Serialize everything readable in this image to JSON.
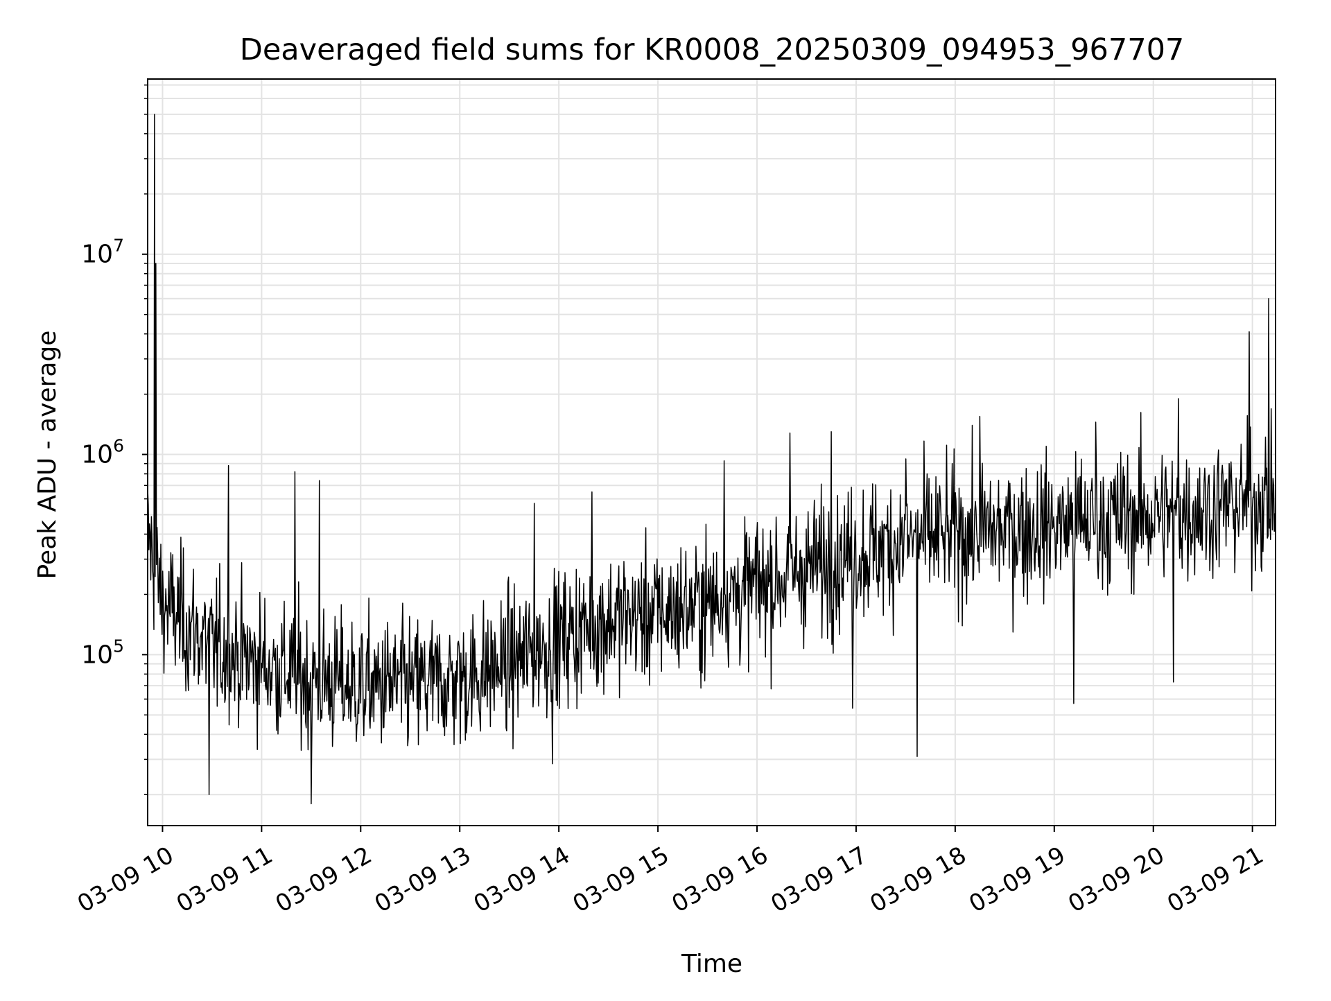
{
  "chart_data": {
    "type": "line",
    "title": "Deaveraged field sums for KR0008_20250309_094953_967707",
    "xlabel": "Time",
    "ylabel": "Peak ADU - average",
    "xlim": [
      "2025-03-09 09:51",
      "2025-03-09 21:14"
    ],
    "ylim": [
      14000,
      75000000
    ],
    "yscale": "log",
    "grid": true,
    "line_color": "#000000",
    "x_tick_labels": [
      "03-09 10",
      "03-09 11",
      "03-09 12",
      "03-09 13",
      "03-09 14",
      "03-09 15",
      "03-09 16",
      "03-09 17",
      "03-09 18",
      "03-09 19",
      "03-09 20",
      "03-09 21"
    ],
    "y_tick_labels": [
      {
        "value": 100000,
        "base": "10",
        "exp": "5"
      },
      {
        "value": 1000000,
        "base": "10",
        "exp": "6"
      },
      {
        "value": 10000000,
        "base": "10",
        "exp": "7"
      }
    ],
    "series": [
      {
        "x": [
          "2025-03-09 09:51",
          "2025-03-09 10:00",
          "2025-03-09 10:15",
          "2025-03-09 10:30",
          "2025-03-09 11:00",
          "2025-03-09 11:30",
          "2025-03-09 12:00",
          "2025-03-09 12:30",
          "2025-03-09 13:00",
          "2025-03-09 13:30",
          "2025-03-09 14:00",
          "2025-03-09 14:30",
          "2025-03-09 15:00",
          "2025-03-09 15:30",
          "2025-03-09 16:00",
          "2025-03-09 16:30",
          "2025-03-09 17:00",
          "2025-03-09 17:30",
          "2025-03-09 18:00",
          "2025-03-09 18:30",
          "2025-03-09 19:00",
          "2025-03-09 19:30",
          "2025-03-09 20:00",
          "2025-03-09 20:30",
          "2025-03-09 21:00",
          "2025-03-09 21:14"
        ],
        "y": [
          400000,
          180000,
          140000,
          110000,
          90000,
          75000,
          70000,
          70000,
          75000,
          90000,
          120000,
          150000,
          160000,
          180000,
          220000,
          270000,
          320000,
          370000,
          400000,
          420000,
          440000,
          470000,
          500000,
          530000,
          580000,
          600000
        ]
      }
    ],
    "spikes": [
      {
        "x": "2025-03-09 09:55",
        "y": 50000000
      },
      {
        "x": "2025-03-09 09:56",
        "y": 9000000
      },
      {
        "x": "2025-03-09 20:58",
        "y": 4100000
      },
      {
        "x": "2025-03-09 21:10",
        "y": 6000000
      },
      {
        "x": "2025-03-09 18:15",
        "y": 1550000
      },
      {
        "x": "2025-03-09 20:15",
        "y": 1900000
      },
      {
        "x": "2025-03-09 16:45",
        "y": 1300000
      },
      {
        "x": "2025-03-09 15:40",
        "y": 930000
      },
      {
        "x": "2025-03-09 10:40",
        "y": 880000
      },
      {
        "x": "2025-03-09 11:20",
        "y": 820000
      },
      {
        "x": "2025-03-09 11:35",
        "y": 740000
      },
      {
        "x": "2025-03-09 14:20",
        "y": 650000
      },
      {
        "x": "2025-03-09 16:20",
        "y": 1280000
      },
      {
        "x": "2025-03-09 17:30",
        "y": 950000
      },
      {
        "x": "2025-03-09 19:25",
        "y": 1450000
      },
      {
        "x": "2025-03-09 13:45",
        "y": 570000
      }
    ],
    "dips": [
      {
        "x": "2025-03-09 10:28",
        "y": 20000
      },
      {
        "x": "2025-03-09 11:30",
        "y": 18000
      },
      {
        "x": "2025-03-09 17:37",
        "y": 31000
      },
      {
        "x": "2025-03-09 16:58",
        "y": 54000
      },
      {
        "x": "2025-03-09 19:12",
        "y": 57000
      },
      {
        "x": "2025-03-09 20:12",
        "y": 73000
      },
      {
        "x": "2025-03-09 13:56",
        "y": 28500
      }
    ]
  }
}
